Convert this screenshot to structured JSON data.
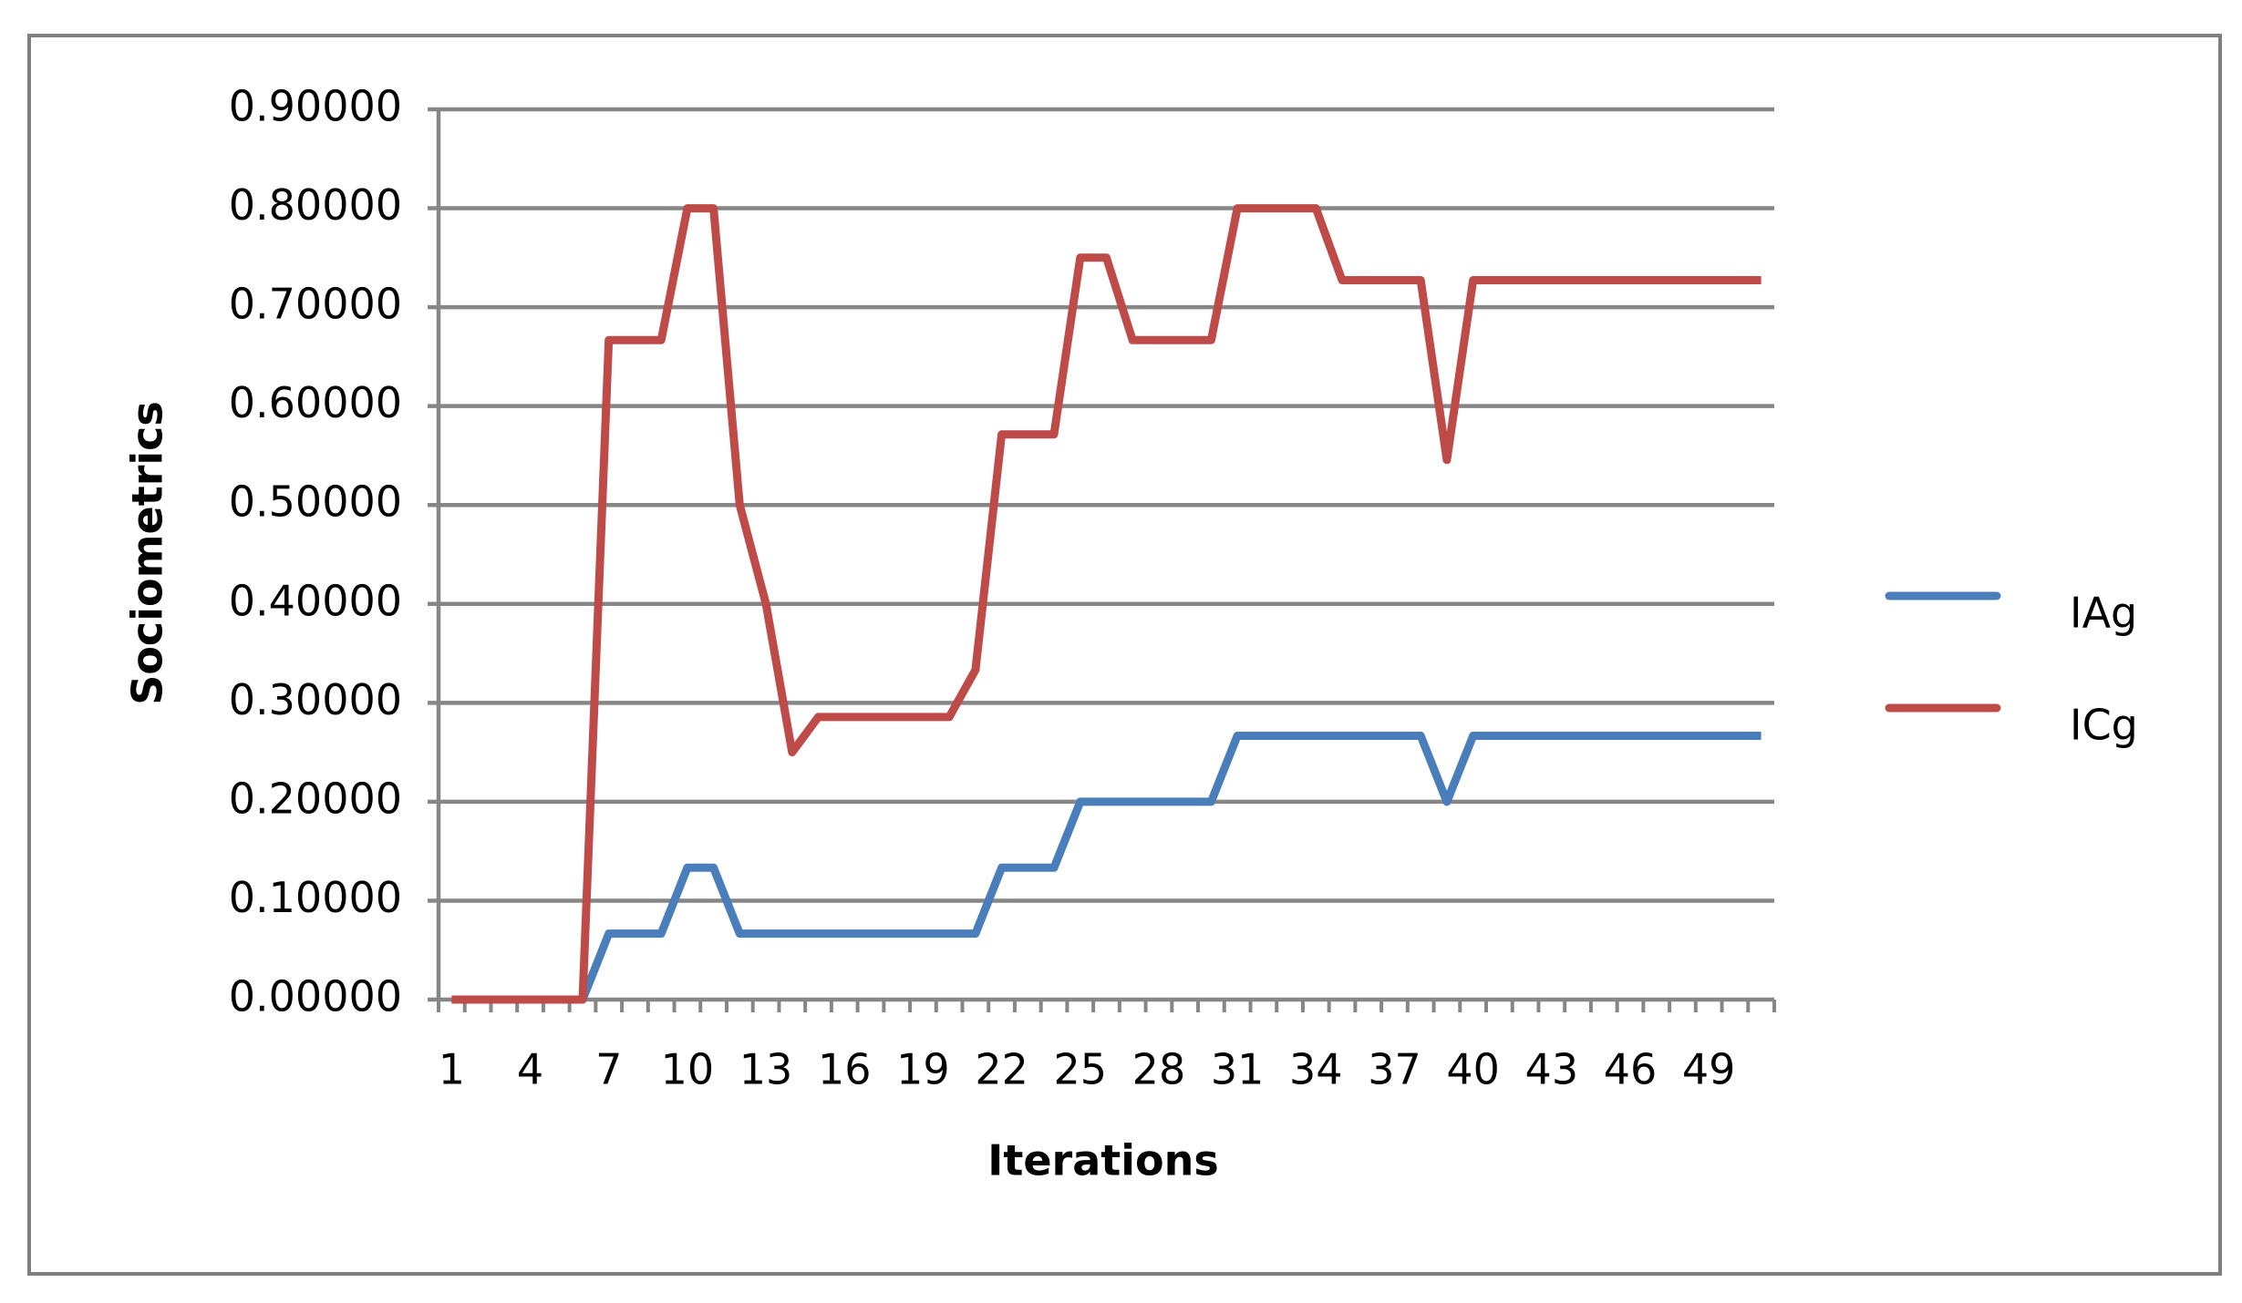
{
  "chart_data": {
    "type": "line",
    "x_label": "Iterations",
    "y_label": "Sociometrics",
    "categories": [
      "1",
      null,
      null,
      "4",
      null,
      null,
      "7",
      null,
      null,
      "10",
      null,
      null,
      "13",
      null,
      null,
      "16",
      null,
      null,
      "19",
      null,
      null,
      "22",
      null,
      null,
      "25",
      null,
      null,
      "28",
      null,
      null,
      "31",
      null,
      null,
      "34",
      null,
      null,
      "37",
      null,
      null,
      "40",
      null,
      null,
      "43",
      null,
      null,
      "46",
      null,
      null,
      "49",
      null,
      null
    ],
    "series": [
      {
        "name": "IAg",
        "color": "#4a7ebb",
        "values": [
          0,
          0,
          0,
          0,
          0,
          0,
          0.0667,
          0.0667,
          0.0667,
          0.1333,
          0.1333,
          0.0667,
          0.0667,
          0.0667,
          0.0667,
          0.0667,
          0.0667,
          0.0667,
          0.0667,
          0.0667,
          0.0667,
          0.1333,
          0.1333,
          0.1333,
          0.2,
          0.2,
          0.2,
          0.2,
          0.2,
          0.2,
          0.2667,
          0.2667,
          0.2667,
          0.2667,
          0.2667,
          0.2667,
          0.2667,
          0.2667,
          0.2,
          0.2667,
          0.2667,
          0.2667,
          0.2667,
          0.2667,
          0.2667,
          0.2667,
          0.2667,
          0.2667,
          0.2667,
          0.2667,
          0.2667
        ]
      },
      {
        "name": "ICg",
        "color": "#be4b48",
        "values": [
          0,
          0,
          0,
          0,
          0,
          0,
          0.6667,
          0.6667,
          0.6667,
          0.8,
          0.8,
          0.5,
          0.4,
          0.25,
          0.2857,
          0.2857,
          0.2857,
          0.2857,
          0.2857,
          0.2857,
          0.3333,
          0.5714,
          0.5714,
          0.5714,
          0.75,
          0.75,
          0.6667,
          0.6667,
          0.6667,
          0.6667,
          0.8,
          0.8,
          0.8,
          0.8,
          0.7273,
          0.7273,
          0.7273,
          0.7273,
          0.5455,
          0.7273,
          0.7273,
          0.7273,
          0.7273,
          0.7273,
          0.7273,
          0.7273,
          0.7273,
          0.7273,
          0.7273,
          0.7273,
          0.7273
        ]
      }
    ],
    "ylim": [
      0,
      0.9
    ],
    "yticks": [
      {
        "value": 0,
        "label": "0.00000"
      },
      {
        "value": 0.1,
        "label": "0.10000"
      },
      {
        "value": 0.2,
        "label": "0.20000"
      },
      {
        "value": 0.3,
        "label": "0.30000"
      },
      {
        "value": 0.4,
        "label": "0.40000"
      },
      {
        "value": 0.5,
        "label": "0.50000"
      },
      {
        "value": 0.6,
        "label": "0.60000"
      },
      {
        "value": 0.7,
        "label": "0.70000"
      },
      {
        "value": 0.8,
        "label": "0.80000"
      },
      {
        "value": 0.9,
        "label": "0.90000"
      }
    ],
    "grid": true,
    "legend": "right"
  }
}
